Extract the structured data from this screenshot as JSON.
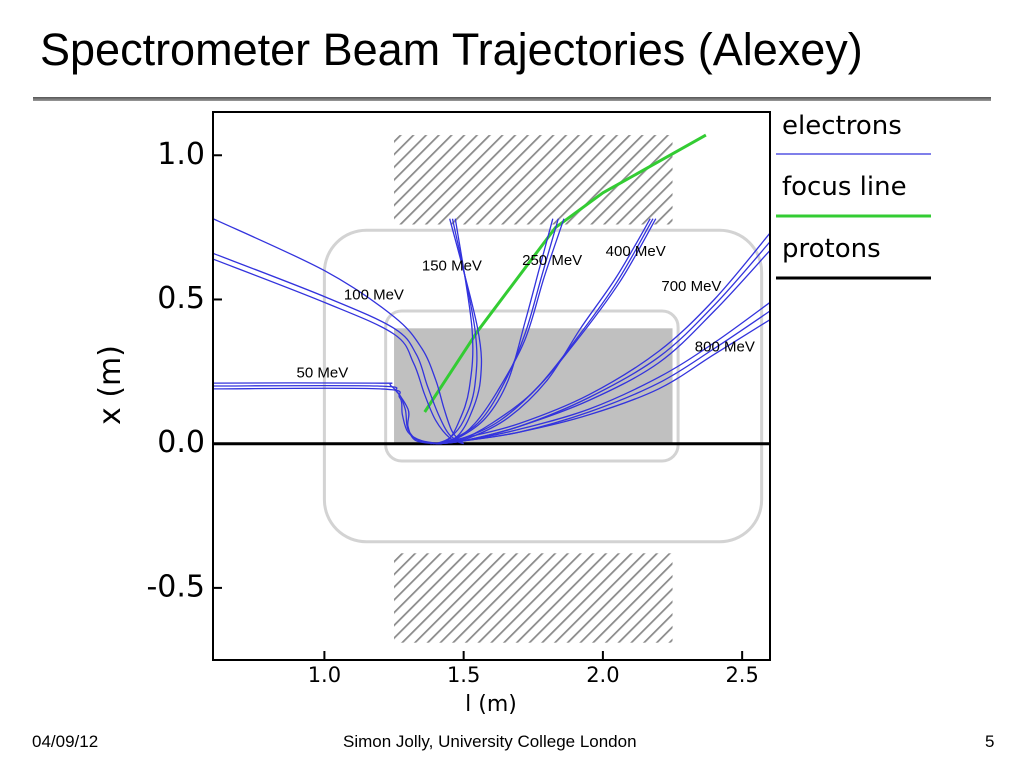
{
  "slide": {
    "title": "Spectrometer Beam Trajectories (Alexey)",
    "footer_date": "04/09/12",
    "footer_author": "Simon Jolly, University College London",
    "page_number": "5"
  },
  "colors": {
    "electrons": "#3333dd",
    "focus_line": "#33cc33",
    "protons": "#000000",
    "magnet_outline": "#d3d3d3",
    "vacuum_chamber": "#c0c0c0",
    "pole_hatch": "#8a8a8a"
  },
  "chart_data": {
    "type": "line",
    "xlabel": "l (m)",
    "ylabel": "x (m)",
    "xlim": [
      0.6,
      2.6
    ],
    "ylim": [
      -0.75,
      1.15
    ],
    "xticks": [
      {
        "value": 1.0,
        "label": "1.0"
      },
      {
        "value": 1.5,
        "label": "1.5"
      },
      {
        "value": 2.0,
        "label": "2.0"
      },
      {
        "value": 2.5,
        "label": "2.5"
      }
    ],
    "yticks": [
      {
        "value": 1.0,
        "label": "1.0"
      },
      {
        "value": 0.5,
        "label": "0.5"
      },
      {
        "value": 0.0,
        "label": "0.0"
      },
      {
        "value": -0.5,
        "label": "-0.5"
      }
    ],
    "grid": false,
    "legend": {
      "placement": "right",
      "entries": [
        {
          "label": "electrons",
          "color": "#3333dd"
        },
        {
          "label": "focus  line",
          "color": "#33cc33"
        },
        {
          "label": "protons",
          "color": "#000000"
        }
      ]
    },
    "regions": [
      {
        "name": "upper pole",
        "kind": "hatched",
        "x": [
          1.25,
          2.25
        ],
        "y": [
          0.76,
          1.07
        ]
      },
      {
        "name": "lower pole",
        "kind": "hatched",
        "x": [
          1.25,
          2.25
        ],
        "y": [
          -0.69,
          -0.38
        ]
      },
      {
        "name": "vacuum chamber",
        "kind": "filled",
        "x": [
          1.25,
          2.25
        ],
        "y": [
          0.0,
          0.4
        ]
      },
      {
        "name": "outer yoke outline",
        "kind": "outline",
        "x": [
          1.0,
          2.57
        ],
        "y": [
          -0.34,
          0.74
        ]
      },
      {
        "name": "inner yoke outline",
        "kind": "outline",
        "x": [
          1.22,
          2.27
        ],
        "y": [
          -0.06,
          0.46
        ]
      }
    ],
    "series": [
      {
        "name": "protons",
        "group": "protons",
        "curves": [
          [
            [
              0.6,
              0.0
            ],
            [
              2.6,
              0.0
            ]
          ]
        ]
      },
      {
        "name": "focus line",
        "group": "focus",
        "curves": [
          [
            [
              1.36,
              0.11
            ],
            [
              1.55,
              0.39
            ],
            [
              1.83,
              0.75
            ],
            [
              2.0,
              0.87
            ],
            [
              2.13,
              0.94
            ],
            [
              2.37,
              1.07
            ]
          ]
        ]
      },
      {
        "name": "50 MeV",
        "group": "electrons",
        "curves": [
          [
            [
              0.6,
              0.21
            ],
            [
              1.18,
              0.21
            ],
            [
              1.24,
              0.2
            ],
            [
              1.3,
              0.12
            ],
            [
              1.3,
              0.06
            ],
            [
              1.33,
              0.01
            ],
            [
              1.42,
              0.0
            ]
          ],
          [
            [
              0.6,
              0.2
            ],
            [
              1.19,
              0.2
            ],
            [
              1.26,
              0.18
            ],
            [
              1.29,
              0.12
            ],
            [
              1.3,
              0.05
            ],
            [
              1.34,
              0.01
            ],
            [
              1.42,
              0.0
            ]
          ],
          [
            [
              0.6,
              0.19
            ],
            [
              1.2,
              0.19
            ],
            [
              1.27,
              0.16
            ],
            [
              1.28,
              0.1
            ],
            [
              1.3,
              0.04
            ],
            [
              1.35,
              0.01
            ],
            [
              1.42,
              0.0
            ]
          ]
        ]
      },
      {
        "name": "100 MeV",
        "group": "electrons",
        "curves": [
          [
            [
              0.6,
              0.78
            ],
            [
              1.0,
              0.6
            ],
            [
              1.25,
              0.44
            ],
            [
              1.35,
              0.33
            ],
            [
              1.4,
              0.22
            ],
            [
              1.43,
              0.12
            ],
            [
              1.46,
              0.04
            ],
            [
              1.5,
              0.0
            ]
          ],
          [
            [
              0.6,
              0.66
            ],
            [
              1.0,
              0.51
            ],
            [
              1.25,
              0.4
            ],
            [
              1.33,
              0.31
            ],
            [
              1.37,
              0.2
            ],
            [
              1.41,
              0.1
            ],
            [
              1.45,
              0.03
            ],
            [
              1.5,
              0.0
            ]
          ],
          [
            [
              0.6,
              0.64
            ],
            [
              1.0,
              0.49
            ],
            [
              1.25,
              0.38
            ],
            [
              1.32,
              0.28
            ],
            [
              1.36,
              0.17
            ],
            [
              1.4,
              0.08
            ],
            [
              1.45,
              0.02
            ],
            [
              1.5,
              0.0
            ]
          ]
        ]
      },
      {
        "name": "150 MeV",
        "group": "electrons",
        "curves": [
          [
            [
              1.45,
              0.78
            ],
            [
              1.55,
              0.4
            ],
            [
              1.56,
              0.22
            ],
            [
              1.52,
              0.09
            ],
            [
              1.47,
              0.02
            ],
            [
              1.4,
              0.0
            ]
          ],
          [
            [
              1.46,
              0.78
            ],
            [
              1.54,
              0.4
            ],
            [
              1.54,
              0.2
            ],
            [
              1.5,
              0.08
            ],
            [
              1.45,
              0.02
            ],
            [
              1.4,
              0.0
            ]
          ],
          [
            [
              1.47,
              0.78
            ],
            [
              1.53,
              0.4
            ],
            [
              1.52,
              0.19
            ],
            [
              1.48,
              0.07
            ],
            [
              1.44,
              0.01
            ],
            [
              1.38,
              0.0
            ]
          ]
        ]
      },
      {
        "name": "250 MeV",
        "group": "electrons",
        "curves": [
          [
            [
              1.82,
              0.78
            ],
            [
              1.77,
              0.6
            ],
            [
              1.72,
              0.42
            ],
            [
              1.66,
              0.22
            ],
            [
              1.58,
              0.09
            ],
            [
              1.48,
              0.02
            ],
            [
              1.4,
              0.0
            ]
          ],
          [
            [
              1.84,
              0.78
            ],
            [
              1.78,
              0.58
            ],
            [
              1.72,
              0.38
            ],
            [
              1.64,
              0.2
            ],
            [
              1.56,
              0.08
            ],
            [
              1.47,
              0.02
            ],
            [
              1.4,
              0.0
            ]
          ],
          [
            [
              1.86,
              0.78
            ],
            [
              1.79,
              0.58
            ],
            [
              1.72,
              0.36
            ],
            [
              1.62,
              0.18
            ],
            [
              1.54,
              0.07
            ],
            [
              1.46,
              0.01
            ],
            [
              1.39,
              0.0
            ]
          ]
        ]
      },
      {
        "name": "400 MeV",
        "group": "electrons",
        "curves": [
          [
            [
              2.17,
              0.78
            ],
            [
              2.05,
              0.58
            ],
            [
              1.92,
              0.4
            ],
            [
              1.8,
              0.22
            ],
            [
              1.66,
              0.09
            ],
            [
              1.52,
              0.02
            ],
            [
              1.42,
              0.0
            ]
          ],
          [
            [
              2.18,
              0.78
            ],
            [
              2.05,
              0.56
            ],
            [
              1.91,
              0.37
            ],
            [
              1.77,
              0.2
            ],
            [
              1.63,
              0.08
            ],
            [
              1.5,
              0.02
            ],
            [
              1.41,
              0.0
            ]
          ],
          [
            [
              2.19,
              0.78
            ],
            [
              2.06,
              0.56
            ],
            [
              1.9,
              0.35
            ],
            [
              1.75,
              0.18
            ],
            [
              1.6,
              0.07
            ],
            [
              1.48,
              0.01
            ],
            [
              1.4,
              0.0
            ]
          ]
        ]
      },
      {
        "name": "700 MeV",
        "group": "electrons",
        "curves": [
          [
            [
              2.6,
              0.73
            ],
            [
              2.4,
              0.5
            ],
            [
              2.2,
              0.32
            ],
            [
              1.95,
              0.17
            ],
            [
              1.7,
              0.07
            ],
            [
              1.5,
              0.02
            ],
            [
              1.4,
              0.0
            ]
          ],
          [
            [
              2.6,
              0.7
            ],
            [
              2.4,
              0.48
            ],
            [
              2.2,
              0.3
            ],
            [
              1.95,
              0.16
            ],
            [
              1.7,
              0.06
            ],
            [
              1.5,
              0.01
            ],
            [
              1.4,
              0.0
            ]
          ],
          [
            [
              2.6,
              0.67
            ],
            [
              2.4,
              0.46
            ],
            [
              2.2,
              0.28
            ],
            [
              1.95,
              0.15
            ],
            [
              1.7,
              0.06
            ],
            [
              1.5,
              0.01
            ],
            [
              1.4,
              0.0
            ]
          ]
        ]
      },
      {
        "name": "800 MeV",
        "group": "electrons",
        "curves": [
          [
            [
              2.6,
              0.49
            ],
            [
              2.4,
              0.35
            ],
            [
              2.2,
              0.23
            ],
            [
              1.95,
              0.12
            ],
            [
              1.7,
              0.05
            ],
            [
              1.5,
              0.01
            ],
            [
              1.4,
              0.0
            ]
          ],
          [
            [
              2.6,
              0.46
            ],
            [
              2.4,
              0.33
            ],
            [
              2.2,
              0.21
            ],
            [
              1.95,
              0.11
            ],
            [
              1.7,
              0.04
            ],
            [
              1.5,
              0.01
            ],
            [
              1.4,
              0.0
            ]
          ],
          [
            [
              2.6,
              0.43
            ],
            [
              2.4,
              0.31
            ],
            [
              2.2,
              0.19
            ],
            [
              1.95,
              0.1
            ],
            [
              1.7,
              0.04
            ],
            [
              1.5,
              0.01
            ],
            [
              1.4,
              0.0
            ]
          ]
        ]
      }
    ],
    "annotations": [
      {
        "text": "50 MeV",
        "x": 0.9,
        "y": 0.23
      },
      {
        "text": "100 MeV",
        "x": 1.07,
        "y": 0.5
      },
      {
        "text": "150 MeV",
        "x": 1.35,
        "y": 0.6
      },
      {
        "text": "250 MeV",
        "x": 1.71,
        "y": 0.62
      },
      {
        "text": "400 MeV",
        "x": 2.01,
        "y": 0.65
      },
      {
        "text": "700 MeV",
        "x": 2.21,
        "y": 0.53
      },
      {
        "text": "800 MeV",
        "x": 2.33,
        "y": 0.32
      }
    ]
  }
}
